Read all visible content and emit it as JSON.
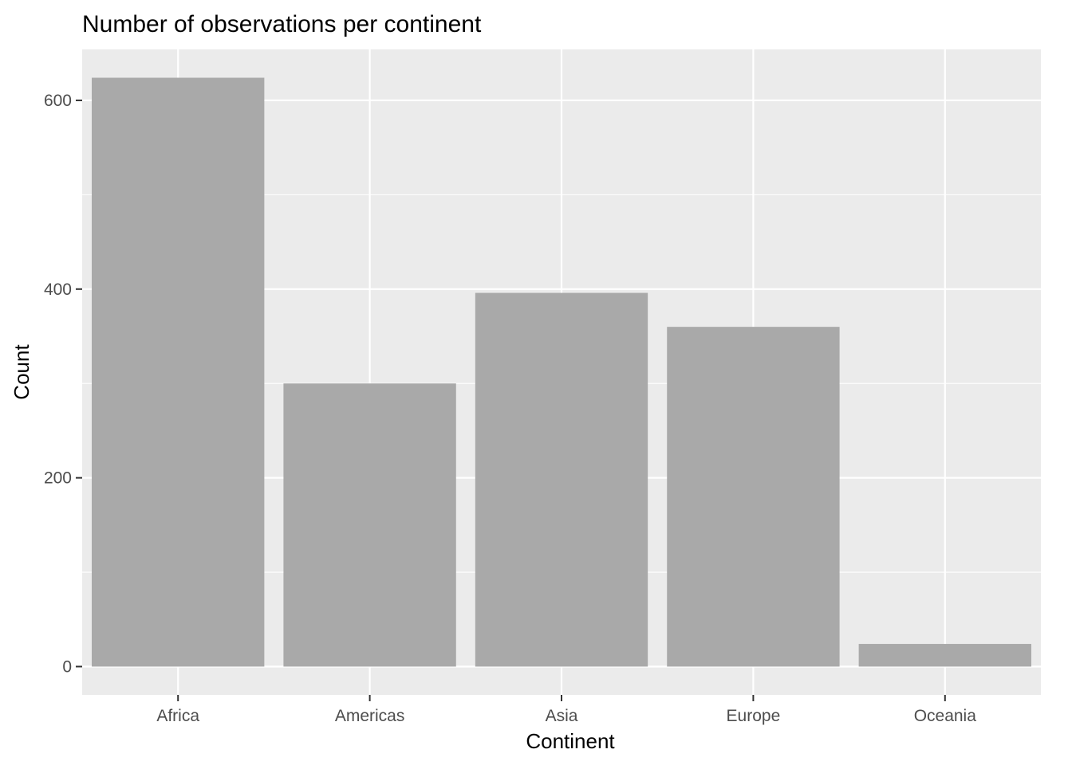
{
  "chart_data": {
    "type": "bar",
    "title": "Number of observations per continent",
    "xlabel": "Continent",
    "ylabel": "Count",
    "categories": [
      "Africa",
      "Americas",
      "Asia",
      "Europe",
      "Oceania"
    ],
    "values": [
      624,
      300,
      396,
      360,
      24
    ],
    "ylim": [
      -30,
      654
    ],
    "yticks": [
      0,
      200,
      400,
      600
    ],
    "grid": true,
    "legend": "none",
    "colors": {
      "panel": "#ebebeb",
      "grid": "#ffffff",
      "bar": "#a9a9a9",
      "tick": "#333333"
    }
  }
}
